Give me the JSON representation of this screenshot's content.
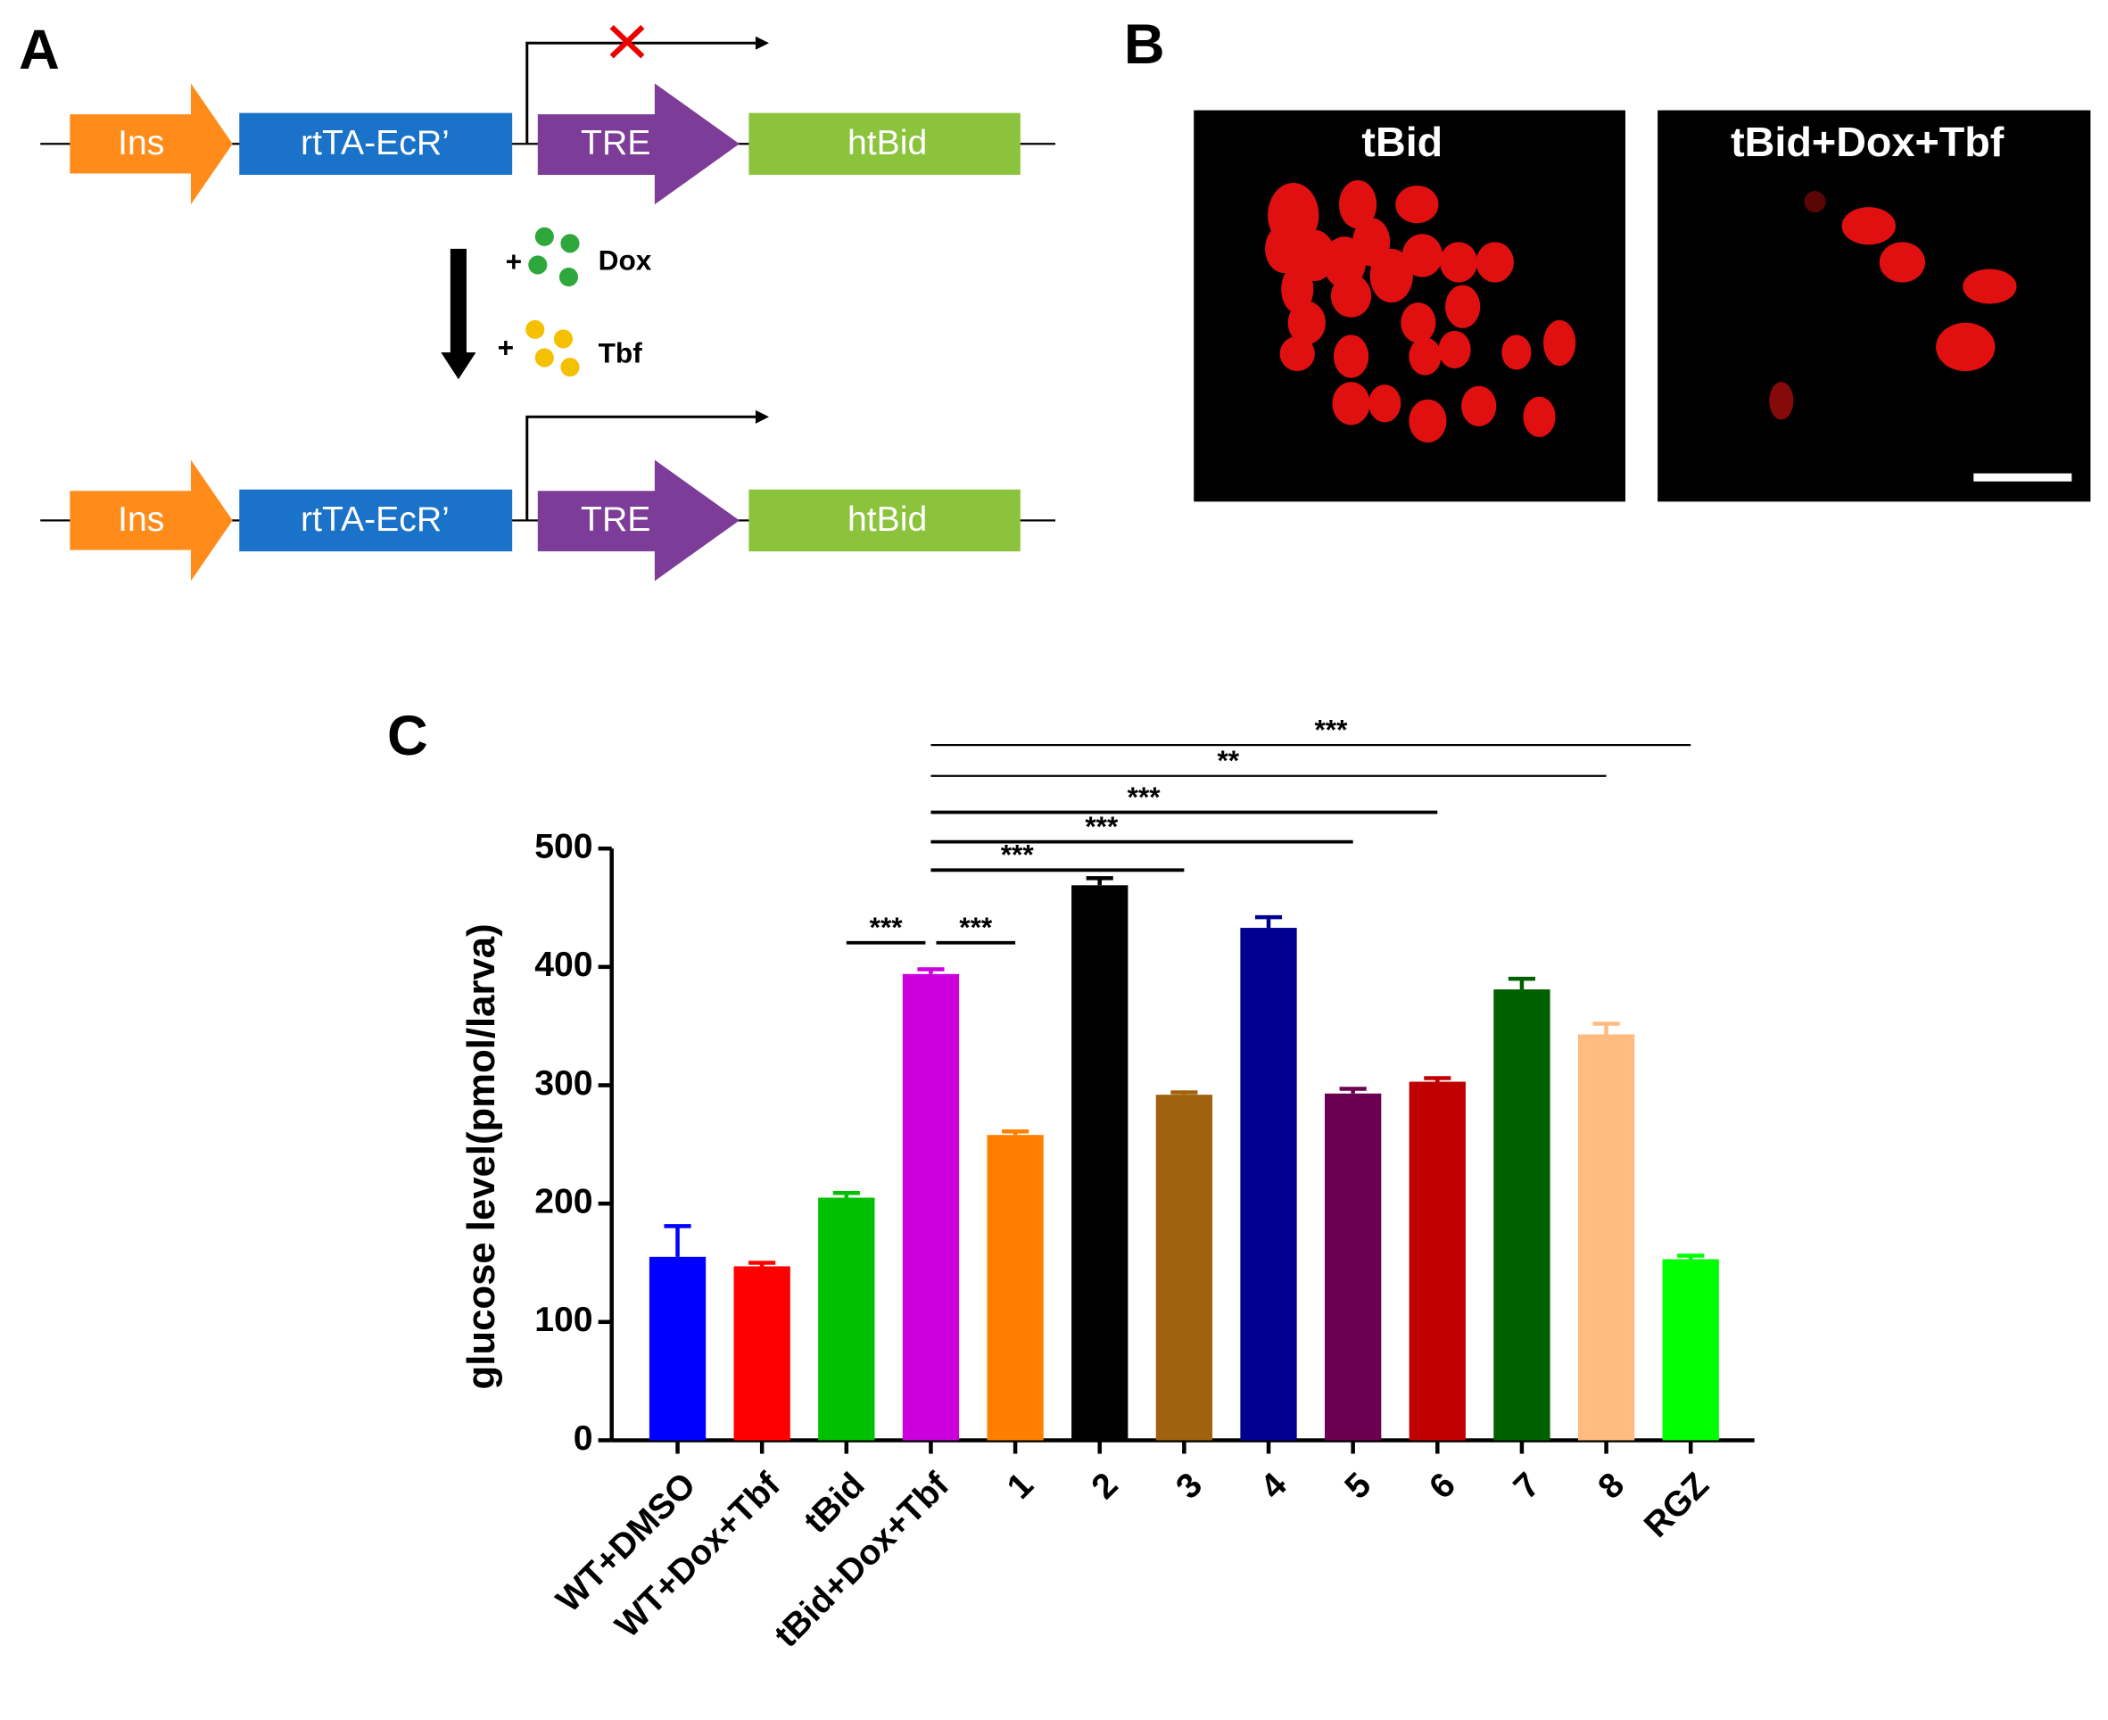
{
  "panel_a": {
    "label": "A",
    "genes": [
      "Ins",
      "rtTA-EcR’",
      "TRE",
      "htBid"
    ],
    "plus": "+",
    "drugs": [
      "Dox",
      "Tbf"
    ]
  },
  "panel_b": {
    "label": "B",
    "images": [
      "tBid",
      "tBid+Dox+Tbf"
    ]
  },
  "chart_data": {
    "type": "bar",
    "label": "C",
    "ylabel": "glucose level(pmol/larva)",
    "categories": [
      "WT+DMSO",
      "WT+Dox+Tbf",
      "tBid",
      "tBid+Dox+Tbf",
      "1",
      "2",
      "3",
      "4",
      "5",
      "6",
      "7",
      "8",
      "RGZ"
    ],
    "values": [
      155,
      147,
      205,
      394,
      258,
      469,
      292,
      433,
      293,
      303,
      381,
      343,
      153
    ],
    "errors": [
      26,
      3,
      4,
      4,
      3,
      6,
      2,
      9,
      4,
      3,
      9,
      9,
      3
    ],
    "colors": [
      "#0000ff",
      "#ff0000",
      "#00c000",
      "#cc00dd",
      "#ff8000",
      "#000000",
      "#a0620f",
      "#000090",
      "#6b0050",
      "#c00000",
      "#006000",
      "#ffbb80",
      "#00ff00"
    ],
    "ylim": [
      0,
      500
    ],
    "yticks": [
      0,
      100,
      200,
      300,
      400,
      500
    ],
    "annotations": [
      {
        "text": "***",
        "between": [
          "tBid",
          "tBid+Dox+Tbf"
        ]
      },
      {
        "text": "***",
        "between": [
          "tBid+Dox+Tbf",
          "1"
        ]
      },
      {
        "text": "***",
        "between": [
          "tBid+Dox+Tbf",
          "3"
        ]
      },
      {
        "text": "***",
        "between": [
          "tBid+Dox+Tbf",
          "5"
        ]
      },
      {
        "text": "***",
        "between": [
          "tBid+Dox+Tbf",
          "6"
        ]
      },
      {
        "text": "**",
        "between": [
          "tBid+Dox+Tbf",
          "8"
        ]
      },
      {
        "text": "***",
        "between": [
          "tBid+Dox+Tbf",
          "RGZ"
        ]
      }
    ]
  }
}
